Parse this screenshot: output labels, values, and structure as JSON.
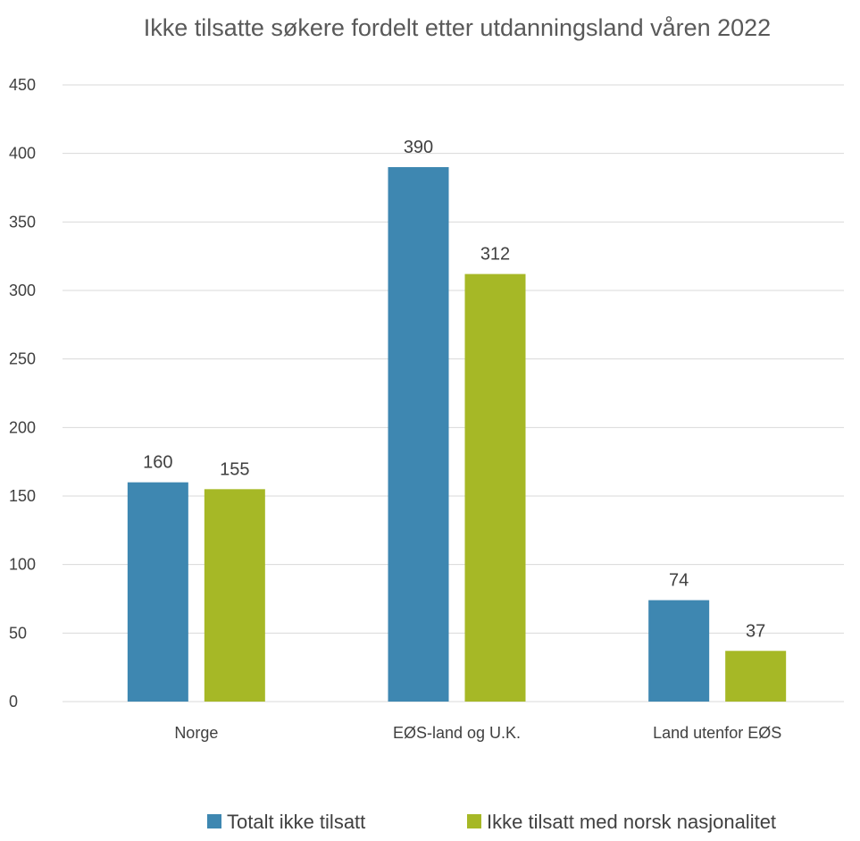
{
  "chart_data": {
    "type": "bar",
    "title": "Ikke tilsatte søkere fordelt etter utdanningsland våren 2022",
    "xlabel": "",
    "ylabel": "",
    "categories": [
      "Norge",
      "EØS-land og U.K.",
      "Land utenfor EØS"
    ],
    "series": [
      {
        "name": "Totalt ikke tilsatt",
        "values": [
          160,
          390,
          74
        ],
        "color": "#3e87b1"
      },
      {
        "name": "Ikke tilsatt med norsk nasjonalitet",
        "values": [
          155,
          312,
          37
        ],
        "color": "#a6b826"
      }
    ],
    "ylim": [
      0,
      450
    ],
    "yticks": [
      0,
      50,
      100,
      150,
      200,
      250,
      300,
      350,
      400,
      450
    ],
    "grid": true,
    "legend": "bottom",
    "data_labels": true
  }
}
